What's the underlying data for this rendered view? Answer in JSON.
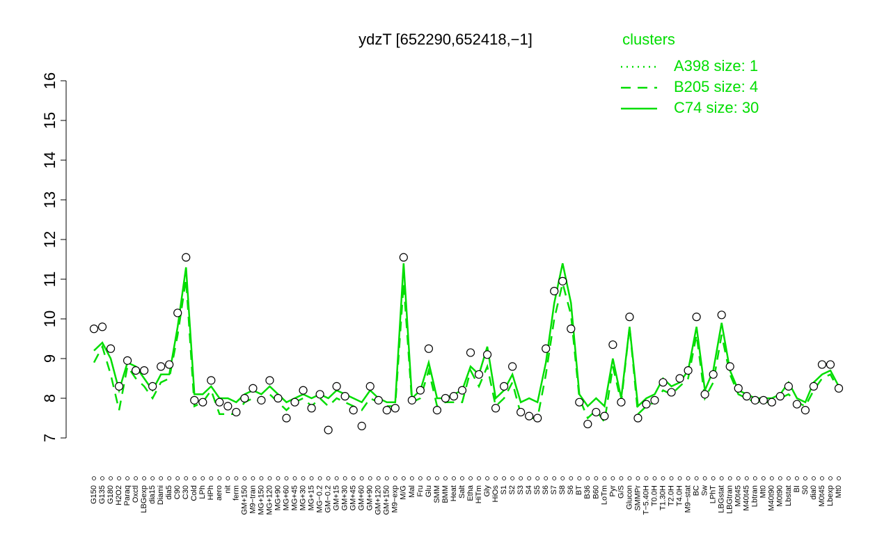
{
  "chart_data": {
    "type": "line",
    "title": "ydzT [652290,652418,−1]",
    "legend_title": "clusters",
    "legend_position": "top-right",
    "ylim": [
      7,
      16
    ],
    "yticks": [
      7,
      8,
      9,
      10,
      11,
      12,
      13,
      14,
      15,
      16
    ],
    "categories": [
      "G150",
      "G135",
      "G180",
      "H2O2",
      "Paraq",
      "Oxctl",
      "LBGexp",
      "dia15",
      "Diami",
      "dia5",
      "C90",
      "C30",
      "Cold",
      "LPh",
      "HPh",
      "aero",
      "nit",
      "ferm",
      "GM+150",
      "M9−tran",
      "MG+150",
      "MG+120",
      "MG+90",
      "MG+60",
      "MG+45",
      "MG+30",
      "MG+15",
      "MG−0.2",
      "GM−0.2",
      "GM+15",
      "GM+30",
      "GM+45",
      "GM+60",
      "GM+90",
      "GM+120",
      "GM+150",
      "M9−exp",
      "M/G",
      "Mal",
      "Fru",
      "Glu",
      "SMM",
      "BMM",
      "Heat",
      "Salt",
      "Etha",
      "HiTm",
      "Gly",
      "HiOs",
      "S1",
      "S2",
      "S3",
      "S4",
      "S5",
      "S6",
      "S7",
      "S8",
      "S6",
      "BT",
      "B36",
      "B60",
      "LoTm",
      "Pyr",
      "G/S",
      "Glucon",
      "SMMPr",
      "T−5.40H",
      "T0.0H",
      "T1.30H",
      "T2.0H",
      "T4.0H",
      "M9−stat",
      "BC",
      "Sw",
      "LPhT",
      "LBGstat",
      "LBGtran",
      "M0t45",
      "M40t45",
      "Lbtran",
      "Mt0",
      "M40t90",
      "M0t90",
      "Lbstat",
      "BI",
      "S0",
      "dia0",
      "M0t45",
      "Lbexp",
      "Mt0"
    ],
    "points": {
      "values": [
        9.75,
        9.8,
        9.25,
        8.3,
        8.95,
        8.7,
        8.7,
        8.3,
        8.8,
        8.85,
        10.15,
        11.55,
        7.95,
        7.9,
        8.45,
        7.9,
        7.8,
        7.65,
        8.0,
        8.25,
        7.95,
        8.45,
        8.0,
        7.5,
        7.9,
        8.2,
        7.75,
        8.1,
        7.2,
        8.3,
        8.05,
        7.7,
        7.3,
        8.3,
        7.95,
        7.7,
        7.75,
        11.55,
        7.95,
        8.2,
        9.25,
        7.7,
        8.0,
        8.05,
        8.2,
        9.15,
        8.6,
        9.1,
        7.75,
        8.3,
        8.8,
        7.65,
        7.55,
        7.5,
        9.25,
        10.7,
        10.95,
        9.75,
        7.9,
        7.35,
        7.65,
        7.55,
        9.35,
        7.9,
        10.05,
        7.5,
        7.85,
        7.95,
        8.4,
        8.15,
        8.5,
        8.7,
        10.05,
        8.1,
        8.6,
        10.1,
        8.8,
        8.25,
        8.05,
        7.95,
        7.95,
        7.9,
        8.05,
        8.3,
        7.85,
        7.7,
        8.3,
        8.85,
        8.85,
        8.25
      ]
    },
    "series": [
      {
        "name": "A398 size: 1",
        "color": "#00dd00",
        "dash": "dotted",
        "values": [
          null,
          null,
          null,
          null,
          null,
          null,
          null,
          null,
          null,
          null,
          null,
          null,
          null,
          null,
          null,
          null,
          null,
          null,
          null,
          null,
          null,
          null,
          null,
          null,
          null,
          null,
          null,
          null,
          null,
          null,
          null,
          null,
          null,
          null,
          null,
          null,
          null,
          null,
          null,
          null,
          null,
          null,
          null,
          null,
          null,
          null,
          null,
          null,
          null,
          null,
          null,
          null,
          null,
          null,
          null,
          null,
          null,
          null,
          null,
          null,
          null,
          null,
          null,
          null,
          null,
          null,
          null,
          null,
          null,
          null,
          null,
          null,
          null,
          null,
          null,
          null,
          null,
          null,
          null,
          null,
          null,
          null,
          null,
          null,
          null,
          null,
          null,
          null,
          null,
          null
        ]
      },
      {
        "name": "B205 size: 4",
        "color": "#00dd00",
        "dash": "dashed",
        "values": [
          8.9,
          9.3,
          8.6,
          7.7,
          8.8,
          8.5,
          8.3,
          8.0,
          8.4,
          8.5,
          9.6,
          11.0,
          7.8,
          7.9,
          8.2,
          7.6,
          7.6,
          7.6,
          7.9,
          8.0,
          7.9,
          8.1,
          7.9,
          7.7,
          7.9,
          8.0,
          7.8,
          8.0,
          7.8,
          8.0,
          7.9,
          7.8,
          7.7,
          8.0,
          7.9,
          7.8,
          7.8,
          10.9,
          7.9,
          8.0,
          8.7,
          7.8,
          7.9,
          7.9,
          7.9,
          8.7,
          8.3,
          8.8,
          7.8,
          8.0,
          8.4,
          7.6,
          7.5,
          7.5,
          8.6,
          10.0,
          10.9,
          10.1,
          8.0,
          7.5,
          7.7,
          7.4,
          8.8,
          7.9,
          9.8,
          7.6,
          7.8,
          7.9,
          8.2,
          8.1,
          8.3,
          8.5,
          9.6,
          8.0,
          8.4,
          9.6,
          8.6,
          8.1,
          8.0,
          7.9,
          7.9,
          7.9,
          8.0,
          8.1,
          7.9,
          7.8,
          8.2,
          8.5,
          8.6,
          8.2
        ]
      },
      {
        "name": "C74 size: 30",
        "color": "#00dd00",
        "dash": "solid",
        "values": [
          9.2,
          9.4,
          9.0,
          8.2,
          8.9,
          8.8,
          8.5,
          8.2,
          8.6,
          8.6,
          9.8,
          11.3,
          8.1,
          8.1,
          8.3,
          8.0,
          8.0,
          7.9,
          8.1,
          8.2,
          8.1,
          8.3,
          8.1,
          7.9,
          8.0,
          8.1,
          8.0,
          8.1,
          8.0,
          8.2,
          8.1,
          8.0,
          7.9,
          8.2,
          8.0,
          7.9,
          7.9,
          11.4,
          8.0,
          8.2,
          8.9,
          8.0,
          8.0,
          8.1,
          8.2,
          8.8,
          8.6,
          9.3,
          8.0,
          8.2,
          8.6,
          7.9,
          8.0,
          7.9,
          8.9,
          10.4,
          11.4,
          10.4,
          8.1,
          7.8,
          8.0,
          7.8,
          9.0,
          8.0,
          9.8,
          7.8,
          8.0,
          8.1,
          8.5,
          8.3,
          8.4,
          8.7,
          9.8,
          8.2,
          8.7,
          9.9,
          8.7,
          8.2,
          8.1,
          8.0,
          8.0,
          8.0,
          8.1,
          8.4,
          8.0,
          7.9,
          8.4,
          8.6,
          8.7,
          8.3
        ]
      }
    ]
  }
}
